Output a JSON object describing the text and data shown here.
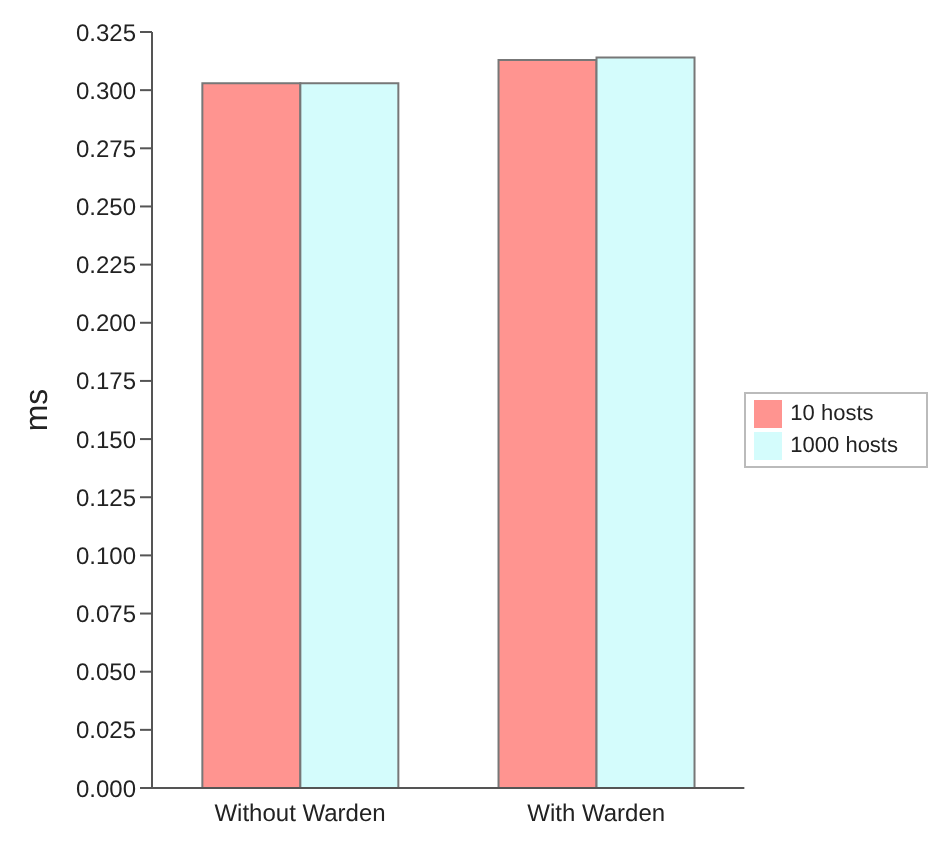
{
  "chart_data": {
    "type": "bar",
    "ylabel": "ms",
    "categories": [
      "Without Warden",
      "With Warden"
    ],
    "series": [
      {
        "name": "10 hosts",
        "color": "#ff9490",
        "values": [
          0.303,
          0.313
        ]
      },
      {
        "name": "1000 hosts",
        "color": "#d4fcfc",
        "values": [
          0.303,
          0.314
        ]
      }
    ],
    "ylim": [
      0,
      0.325
    ],
    "yticks": [
      {
        "value": 0,
        "label": "0.000"
      },
      {
        "value": 0.025,
        "label": "0.025"
      },
      {
        "value": 0.05,
        "label": "0.050"
      },
      {
        "value": 0.075,
        "label": "0.075"
      },
      {
        "value": 0.1,
        "label": "0.100"
      },
      {
        "value": 0.125,
        "label": "0.125"
      },
      {
        "value": 0.15,
        "label": "0.150"
      },
      {
        "value": 0.175,
        "label": "0.175"
      },
      {
        "value": 0.2,
        "label": "0.200"
      },
      {
        "value": 0.225,
        "label": "0.225"
      },
      {
        "value": 0.25,
        "label": "0.250"
      },
      {
        "value": 0.275,
        "label": "0.275"
      },
      {
        "value": 0.3,
        "label": "0.300"
      },
      {
        "value": 0.325,
        "label": "0.325"
      }
    ],
    "grid": false,
    "legend": "right"
  }
}
